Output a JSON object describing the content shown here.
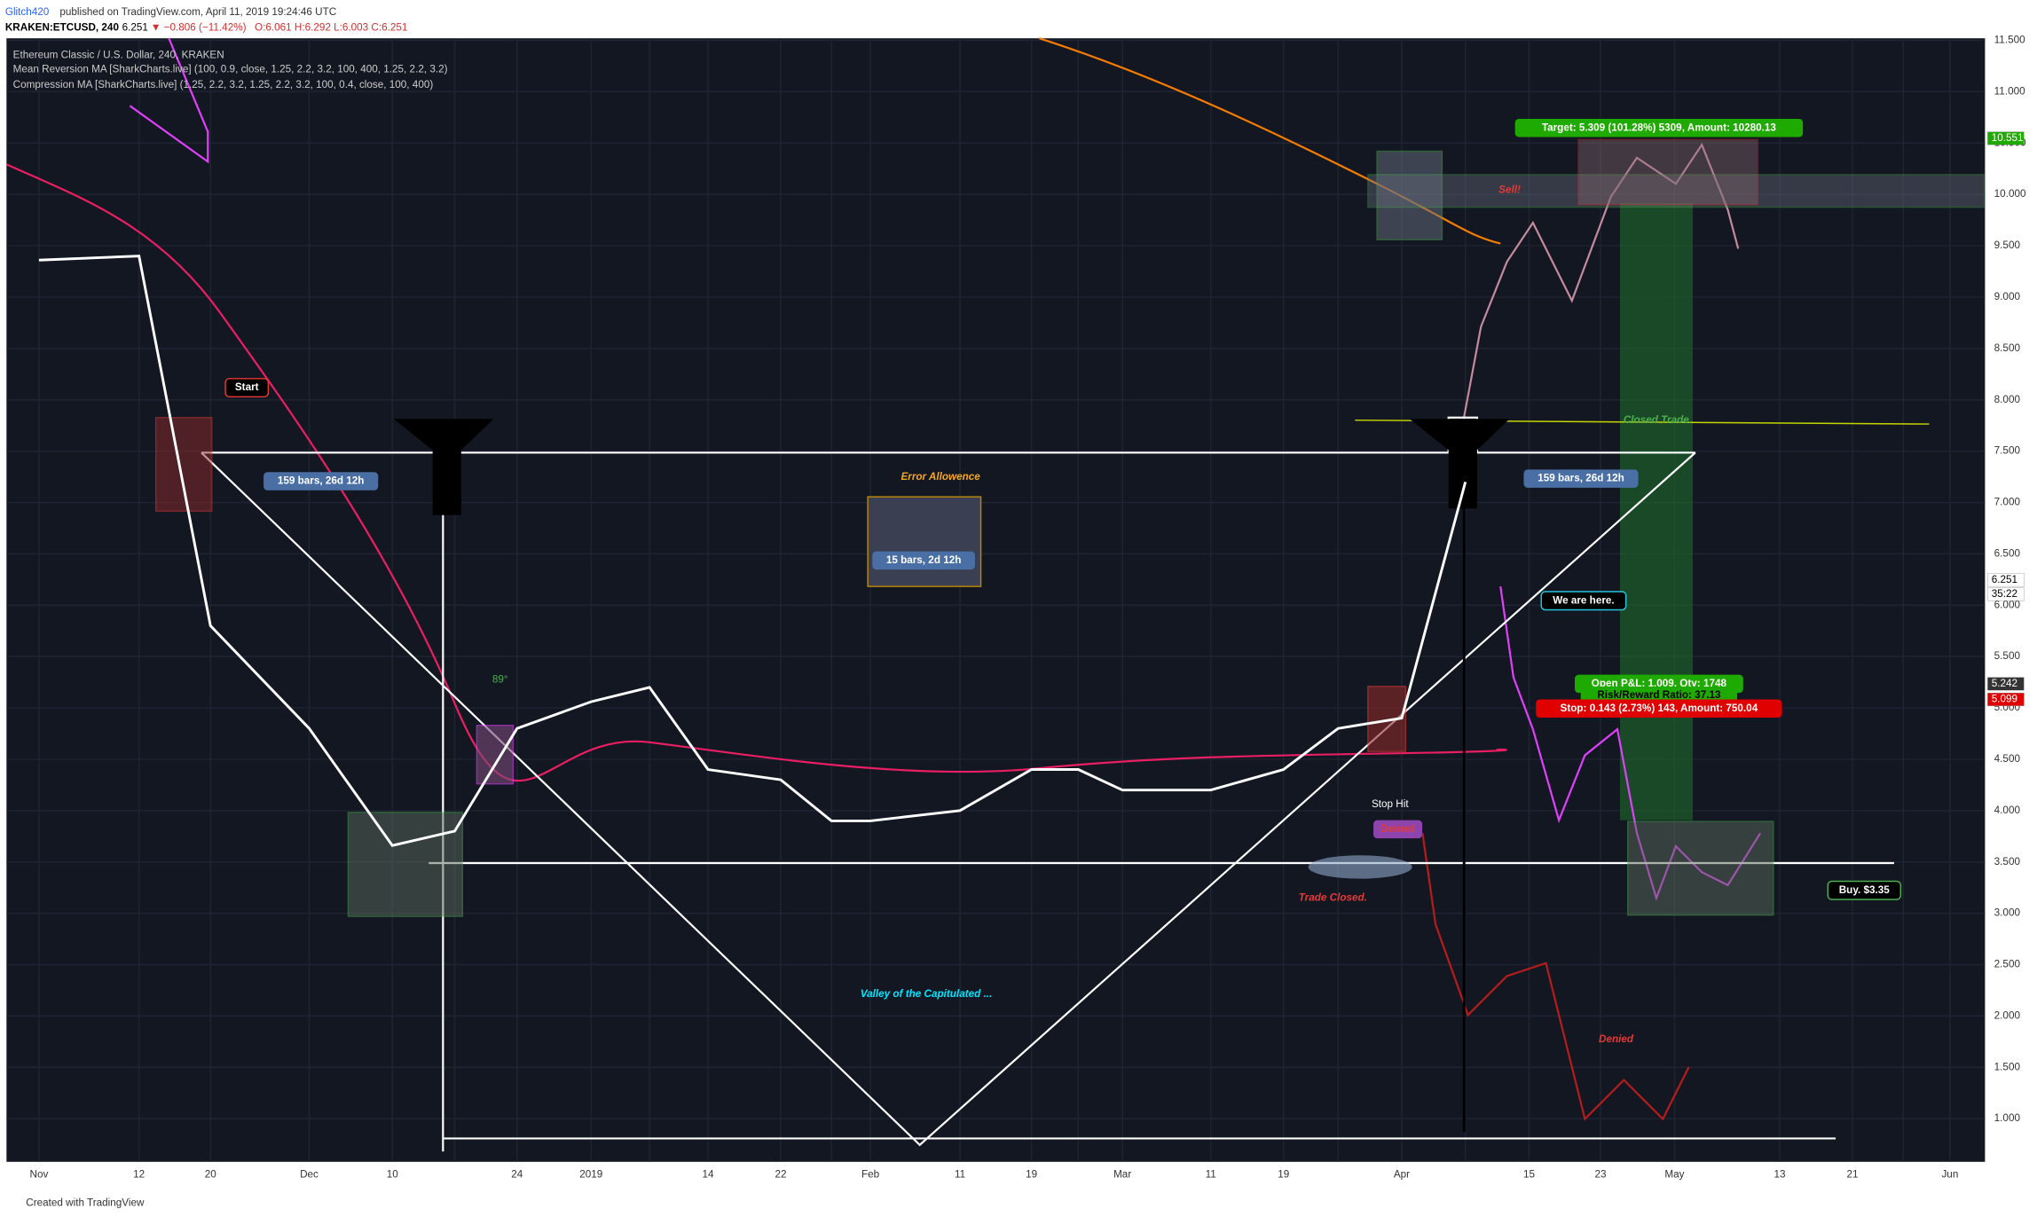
{
  "header": {
    "author": "Glitch420",
    "published": "published on TradingView.com, April 11, 2019 19:24:46 UTC",
    "symbol": "KRAKEN:ETCUSD, 240",
    "price": "6.251",
    "change": "▼ −0.806 (−11.42%)",
    "ohlc": "O:6.061 H:6.292 L:6.003 C:6.251"
  },
  "indicators": [
    "Ethereum Classic / U.S. Dollar, 240, KRAKEN",
    "Mean Reversion MA [SharkCharts.live] (100, 0.9, close, 1.25, 2.2, 3.2, 100, 400, 1.25, 2.2, 3.2)",
    "Compression MA [SharkCharts.live] (1.25, 2.2, 3.2, 1.25, 2.2, 3.2, 100, 0.4, close, 100, 400)"
  ],
  "annotations": [
    "Start",
    "159 bars, 26d 12h",
    "Error Allowence",
    "15 bars, 2d 12h",
    "89°",
    "Valley of the Capitulated ...",
    "Stop Hit",
    "Denied",
    "Trade Closed.",
    "Denied",
    "Closed Trade.",
    "Sell!",
    "Target: 5.309 (101.28%) 5309, Amount: 10280.13",
    "159 bars, 26d 12h",
    "We are here.",
    "Open P&L: 1.009, Qty: 1748",
    "Risk/Reward Ratio: 37.13",
    "Stop: 0.143 (2.73%) 143, Amount: 750.04",
    "Buy. $3.35"
  ],
  "price_labels": [
    "10.551",
    "6.251",
    "35:22",
    "5.242",
    "5.099"
  ],
  "footer": "Created with TradingView",
  "chart_data": {
    "type": "line",
    "color": "#ffffff",
    "categories": [
      "Nov",
      "12",
      "20",
      "Dec",
      "10",
      null,
      "24",
      "2019",
      null,
      "14",
      "22",
      null,
      "Feb",
      "11",
      "19",
      null,
      "Mar",
      "11",
      "19",
      null,
      "Apr",
      null,
      "15",
      "23",
      "May",
      "13",
      "21",
      null,
      "Jun"
    ],
    "values": [
      9.36,
      9.4,
      5.8,
      4.8,
      3.66,
      3.8,
      4.8,
      5.06,
      5.2,
      4.4,
      4.3,
      3.9,
      3.9,
      4.0,
      4.4,
      4.4,
      4.2,
      4.2,
      4.4,
      4.8,
      4.9,
      7.2,
      null,
      null,
      null,
      null,
      null,
      null,
      null
    ],
    "ylim": [
      0.58,
      11.52
    ],
    "yticks": [
      {
        "value": 1,
        "label": "1.000"
      },
      {
        "value": 1.5,
        "label": "1.500"
      },
      {
        "value": 2,
        "label": "2.000"
      },
      {
        "value": 2.5,
        "label": "2.500"
      },
      {
        "value": 3,
        "label": "3.000"
      },
      {
        "value": 3.5,
        "label": "3.500"
      },
      {
        "value": 4,
        "label": "4.000"
      },
      {
        "value": 4.5,
        "label": "4.500"
      },
      {
        "value": 5,
        "label": "5.000"
      },
      {
        "value": 5.5,
        "label": "5.500"
      },
      {
        "value": 6,
        "label": "6.000"
      },
      {
        "value": 6.5,
        "label": "6.500"
      },
      {
        "value": 7,
        "label": "7.000"
      },
      {
        "value": 7.5,
        "label": "7.500"
      },
      {
        "value": 8,
        "label": "8.000"
      },
      {
        "value": 8.5,
        "label": "8.500"
      },
      {
        "value": 9,
        "label": "9.000"
      },
      {
        "value": 9.5,
        "label": "9.500"
      },
      {
        "value": 10,
        "label": "10.000"
      },
      {
        "value": 10.5,
        "label": "10.500"
      },
      {
        "value": 11,
        "label": "11.000"
      },
      {
        "value": 11.5,
        "label": "11.500"
      }
    ],
    "grid": true
  }
}
